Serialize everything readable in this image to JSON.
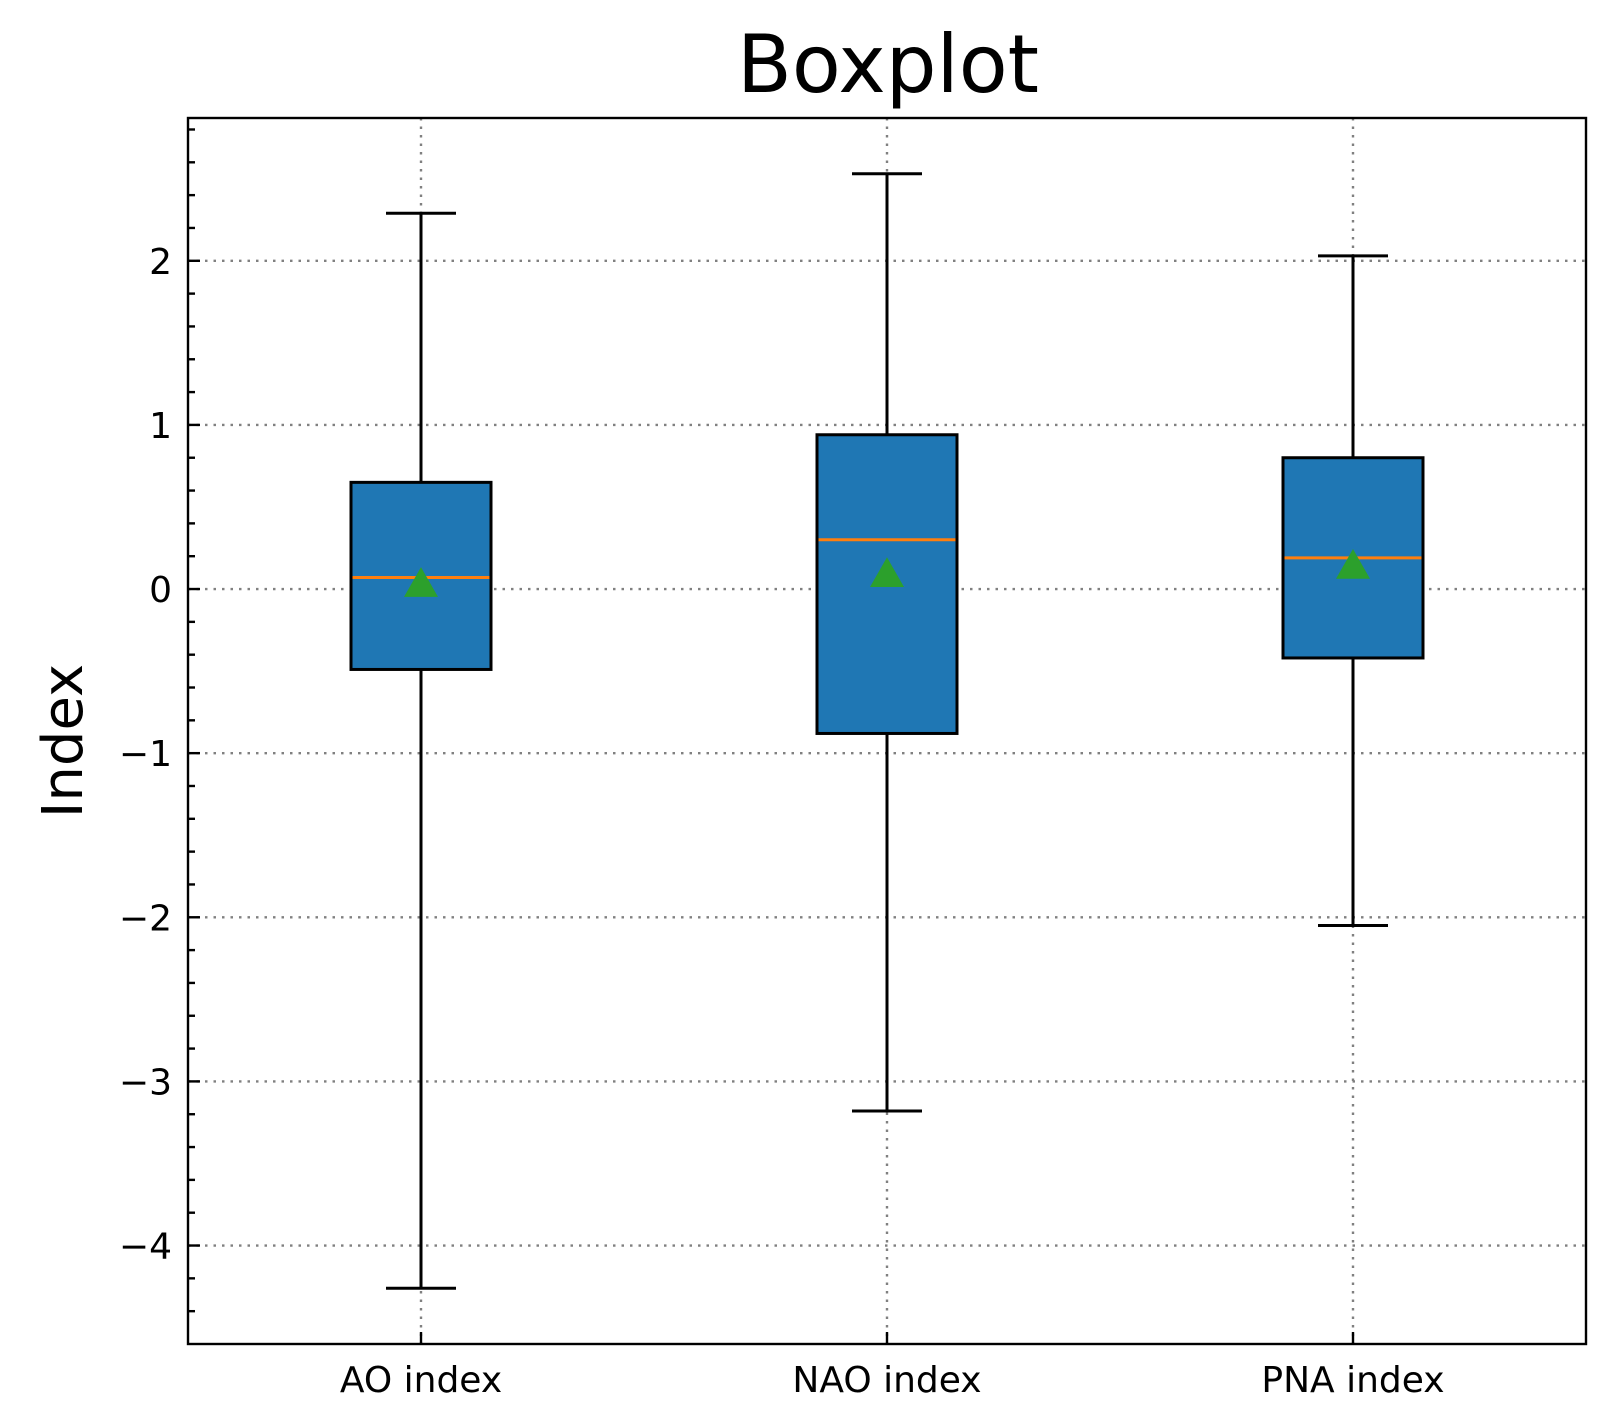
{
  "chart_data": {
    "type": "boxplot",
    "title": "Boxplot",
    "xlabel": "",
    "ylabel": "Index",
    "ylim": [
      -4.6,
      2.87
    ],
    "yticks": [
      -4,
      -3,
      -2,
      -1,
      0,
      1,
      2
    ],
    "ytick_labels": [
      "−4",
      "−3",
      "−2",
      "−1",
      "0",
      "1",
      "2"
    ],
    "grid": true,
    "categories": [
      "AO index",
      "NAO index",
      "PNA index"
    ],
    "boxes": [
      {
        "label": "AO index",
        "whisker_low": -4.26,
        "q1": -0.49,
        "median": 0.07,
        "q3": 0.65,
        "whisker_high": 2.29,
        "mean": 0.03
      },
      {
        "label": "NAO index",
        "whisker_low": -3.18,
        "q1": -0.88,
        "median": 0.3,
        "q3": 0.94,
        "whisker_high": 2.53,
        "mean": 0.09
      },
      {
        "label": "PNA index",
        "whisker_low": -2.05,
        "q1": -0.42,
        "median": 0.19,
        "q3": 0.8,
        "whisker_high": 2.03,
        "mean": 0.14
      }
    ],
    "colors": {
      "box_fill": "#1f77b4",
      "median": "#ff7f0e",
      "mean_marker": "#2ca02c",
      "grid": "#808080"
    }
  }
}
